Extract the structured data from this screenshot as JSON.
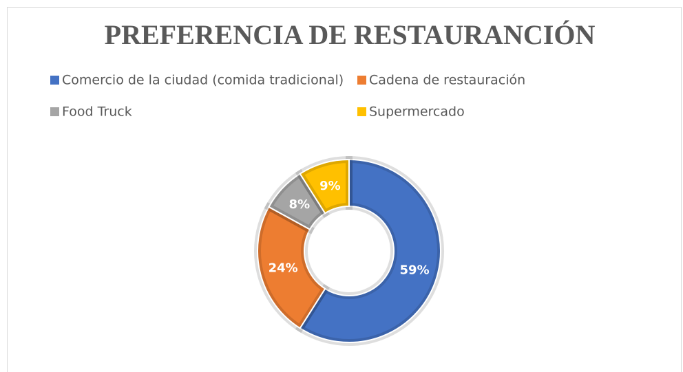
{
  "chart_data": {
    "type": "donut",
    "title": "PREFERENCIA DE RESTAURANCIÓN",
    "categories": [
      "Comercio de la ciudad (comida tradicional)",
      "Cadena de restauración",
      "Food Truck",
      "Supermercado"
    ],
    "values": [
      59,
      24,
      8,
      9
    ],
    "value_labels": [
      "59%",
      "24%",
      "8%",
      "9%"
    ],
    "colors": [
      "#4472c4",
      "#ed7d31",
      "#a5a5a5",
      "#ffc000"
    ],
    "legend": "top"
  }
}
